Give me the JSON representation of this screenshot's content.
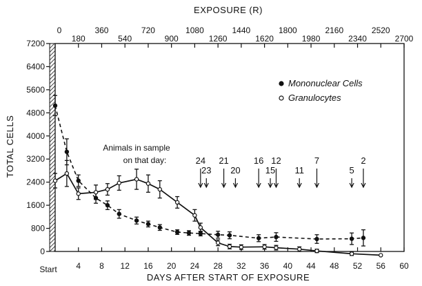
{
  "chart_data": {
    "type": "line",
    "xlabel": "DAYS AFTER START OF EXPOSURE",
    "ylabel": "TOTAL CELLS",
    "top_axis_label": "EXPOSURE (R)",
    "xlim": [
      0,
      60
    ],
    "ylim": [
      0,
      7200
    ],
    "x_ticks": [
      4,
      8,
      12,
      16,
      20,
      24,
      28,
      32,
      36,
      40,
      44,
      48,
      52,
      56,
      60
    ],
    "x_start_label": "Start",
    "y_ticks": [
      0,
      800,
      1600,
      2400,
      3200,
      4000,
      4800,
      5600,
      6400,
      7200
    ],
    "top_ticks": [
      {
        "label": "0",
        "day": 0
      },
      {
        "label": "180",
        "day": 4
      },
      {
        "label": "360",
        "day": 8
      },
      {
        "label": "540",
        "day": 12
      },
      {
        "label": "720",
        "day": 16
      },
      {
        "label": "900",
        "day": 20
      },
      {
        "label": "1080",
        "day": 24
      },
      {
        "label": "1260",
        "day": 28
      },
      {
        "label": "1440",
        "day": 32
      },
      {
        "label": "1620",
        "day": 36
      },
      {
        "label": "1800",
        "day": 40
      },
      {
        "label": "1980",
        "day": 44
      },
      {
        "label": "2160",
        "day": 48
      },
      {
        "label": "2340",
        "day": 52
      },
      {
        "label": "2520",
        "day": 56
      },
      {
        "label": "2700",
        "day": 60
      }
    ],
    "legend": {
      "placement": "top-right",
      "entries": [
        "Mononuclear Cells",
        "Granulocytes"
      ]
    },
    "series": [
      {
        "name": "Mononuclear Cells",
        "marker": "filled-circle",
        "line": "dashed",
        "points": [
          {
            "x": 0,
            "y": 5050,
            "err": 350
          },
          {
            "x": 2,
            "y": 3450,
            "err": 450
          },
          {
            "x": 4,
            "y": 2450,
            "err": 200
          },
          {
            "x": 7,
            "y": 1850,
            "err": 180
          },
          {
            "x": 9,
            "y": 1600,
            "err": 150
          },
          {
            "x": 11,
            "y": 1300,
            "err": 150
          },
          {
            "x": 14,
            "y": 1070,
            "err": 120
          },
          {
            "x": 16,
            "y": 950,
            "err": 100
          },
          {
            "x": 18,
            "y": 830,
            "err": 100
          },
          {
            "x": 21,
            "y": 670,
            "err": 80
          },
          {
            "x": 23,
            "y": 640,
            "err": 80
          },
          {
            "x": 25,
            "y": 620,
            "err": 80
          },
          {
            "x": 28,
            "y": 580,
            "err": 120
          },
          {
            "x": 30,
            "y": 560,
            "err": 120
          },
          {
            "x": 35,
            "y": 460,
            "err": 120
          },
          {
            "x": 38,
            "y": 500,
            "err": 150
          },
          {
            "x": 45,
            "y": 430,
            "err": 150
          },
          {
            "x": 51,
            "y": 440,
            "err": 200
          },
          {
            "x": 53,
            "y": 470,
            "err": 280
          }
        ]
      },
      {
        "name": "Granulocytes",
        "marker": "open-circle",
        "line": "solid",
        "points": [
          {
            "x": 0,
            "y": 2450,
            "err": 250
          },
          {
            "x": 2,
            "y": 2700,
            "err": 450
          },
          {
            "x": 4,
            "y": 2000,
            "err": 200
          },
          {
            "x": 7,
            "y": 2050,
            "err": 250
          },
          {
            "x": 9,
            "y": 2150,
            "err": 200
          },
          {
            "x": 11,
            "y": 2370,
            "err": 250
          },
          {
            "x": 14,
            "y": 2500,
            "err": 350
          },
          {
            "x": 16,
            "y": 2350,
            "err": 300
          },
          {
            "x": 18,
            "y": 2150,
            "err": 300
          },
          {
            "x": 21,
            "y": 1700,
            "err": 200
          },
          {
            "x": 24,
            "y": 1250,
            "err": 200
          },
          {
            "x": 25,
            "y": 830,
            "err": 150
          },
          {
            "x": 28,
            "y": 300,
            "err": 100
          },
          {
            "x": 30,
            "y": 170,
            "err": 80
          },
          {
            "x": 32,
            "y": 150,
            "err": 80
          },
          {
            "x": 36,
            "y": 160,
            "err": 80
          },
          {
            "x": 38,
            "y": 130,
            "err": 80
          },
          {
            "x": 42,
            "y": 80,
            "err": 80
          },
          {
            "x": 45,
            "y": 20,
            "err": 60
          },
          {
            "x": 51,
            "y": -80,
            "err": 60
          },
          {
            "x": 56,
            "y": -130,
            "err": 0
          }
        ]
      }
    ],
    "annotation": {
      "lines": [
        "Animals in sample",
        "on that day:"
      ],
      "counts": [
        {
          "label": "24",
          "day": 25
        },
        {
          "label": "23",
          "day": 26
        },
        {
          "label": "21",
          "day": 29
        },
        {
          "label": "20",
          "day": 31
        },
        {
          "label": "16",
          "day": 35
        },
        {
          "label": "15",
          "day": 37
        },
        {
          "label": "12",
          "day": 38
        },
        {
          "label": "11",
          "day": 42
        },
        {
          "label": "7",
          "day": 45
        },
        {
          "label": "5",
          "day": 51
        },
        {
          "label": "2",
          "day": 53
        }
      ]
    }
  }
}
